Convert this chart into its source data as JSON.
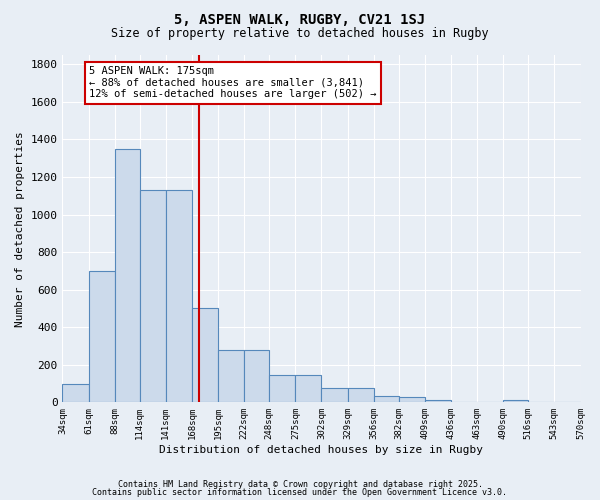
{
  "title1": "5, ASPEN WALK, RUGBY, CV21 1SJ",
  "title2": "Size of property relative to detached houses in Rugby",
  "xlabel": "Distribution of detached houses by size in Rugby",
  "ylabel": "Number of detached properties",
  "bin_labels": [
    "34sqm",
    "61sqm",
    "88sqm",
    "114sqm",
    "141sqm",
    "168sqm",
    "195sqm",
    "222sqm",
    "248sqm",
    "275sqm",
    "302sqm",
    "329sqm",
    "356sqm",
    "382sqm",
    "409sqm",
    "436sqm",
    "463sqm",
    "490sqm",
    "516sqm",
    "543sqm",
    "570sqm"
  ],
  "bin_edges": [
    34,
    61,
    88,
    114,
    141,
    168,
    195,
    222,
    248,
    275,
    302,
    329,
    356,
    382,
    409,
    436,
    463,
    490,
    516,
    543,
    570
  ],
  "bar_heights": [
    100,
    700,
    1350,
    1130,
    1130,
    500,
    280,
    280,
    145,
    145,
    75,
    75,
    35,
    30,
    15,
    0,
    0,
    15,
    0,
    0
  ],
  "bar_color": "#ccdaeb",
  "bar_edge_color": "#5588bb",
  "vline_x": 175,
  "vline_color": "#cc0000",
  "annotation_title": "5 ASPEN WALK: 175sqm",
  "annotation_line1": "← 88% of detached houses are smaller (3,841)",
  "annotation_line2": "12% of semi-detached houses are larger (502) →",
  "annotation_box_facecolor": "#ffffff",
  "annotation_box_edgecolor": "#cc0000",
  "background_color": "#e8eef5",
  "grid_color": "#ffffff",
  "ylim": [
    0,
    1850
  ],
  "yticks": [
    0,
    200,
    400,
    600,
    800,
    1000,
    1200,
    1400,
    1600,
    1800
  ],
  "footer1": "Contains HM Land Registry data © Crown copyright and database right 2025.",
  "footer2": "Contains public sector information licensed under the Open Government Licence v3.0."
}
